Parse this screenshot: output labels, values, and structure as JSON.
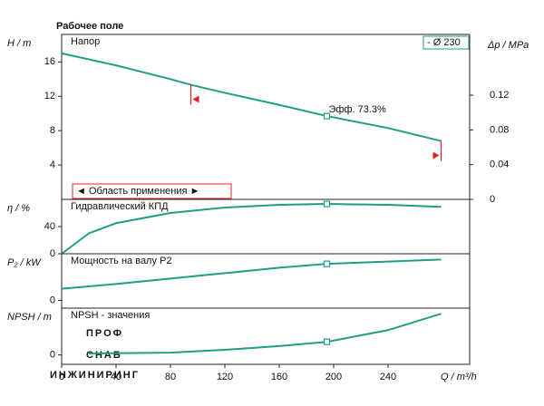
{
  "title": "Рабочее поле",
  "watermark": [
    "ПРОФ",
    "СНАБ",
    "ИНЖИНИРИНГ"
  ],
  "chart_data": [
    {
      "type": "line",
      "label": "Напор",
      "ylabel": "H / m",
      "y2label": "Δp / MPa",
      "xlim": [
        0,
        300
      ],
      "ylim": [
        0,
        19.2
      ],
      "yticks": [
        4,
        8,
        12,
        16
      ],
      "y2lim": [
        0,
        0.19
      ],
      "y2ticks": [
        0,
        0.04,
        0.08,
        0.12
      ],
      "operating_q": 195,
      "annotation": "Эфф. 73.3%",
      "range_label": "◄ Область применения ►",
      "range_limits": [
        95,
        279
      ],
      "series": [
        {
          "name": "- Ø 230",
          "color": "#1f9e89",
          "x": [
            0,
            40,
            80,
            96,
            120,
            160,
            195,
            240,
            279
          ],
          "values": [
            17.0,
            15.6,
            14.0,
            13.3,
            12.4,
            11.0,
            9.7,
            8.3,
            6.8
          ]
        }
      ]
    },
    {
      "type": "line",
      "label": "Гидравлический КПД",
      "ylabel": "η / %",
      "xlim": [
        0,
        300
      ],
      "ylim": [
        0,
        80
      ],
      "yticks": [
        0,
        40
      ],
      "operating_q": 195,
      "series": [
        {
          "name": "η",
          "color": "#1f9e89",
          "x": [
            0,
            20,
            40,
            80,
            120,
            160,
            195,
            240,
            279
          ],
          "values": [
            0,
            30,
            45,
            60,
            68,
            72,
            73.3,
            72,
            69
          ]
        }
      ]
    },
    {
      "type": "line",
      "label": "Мощность на валу P2",
      "ylabel": "P₂ / kW",
      "xlim": [
        0,
        300
      ],
      "ylim": [
        -1,
        6
      ],
      "yticks": [
        0
      ],
      "operating_q": 195,
      "series": [
        {
          "name": "P2",
          "color": "#1f9e89",
          "x": [
            0,
            40,
            80,
            120,
            160,
            195,
            240,
            279
          ],
          "values": [
            1.5,
            2.1,
            2.8,
            3.5,
            4.2,
            4.7,
            5.0,
            5.25
          ]
        }
      ]
    },
    {
      "type": "line",
      "label": "NPSH - значения",
      "ylabel": "NPSH / m",
      "xlim": [
        0,
        300
      ],
      "ylim": [
        -2,
        10
      ],
      "yticks": [
        0
      ],
      "xticks": [
        0,
        40,
        80,
        120,
        160,
        200,
        240
      ],
      "xlabel": "Q / m³/h",
      "operating_q": 195,
      "series": [
        {
          "name": "NPSH",
          "color": "#1f9e89",
          "x": [
            20,
            80,
            120,
            160,
            195,
            240,
            279
          ],
          "values": [
            0.3,
            0.5,
            1.1,
            1.9,
            2.8,
            5.3,
            8.8
          ]
        }
      ]
    }
  ]
}
